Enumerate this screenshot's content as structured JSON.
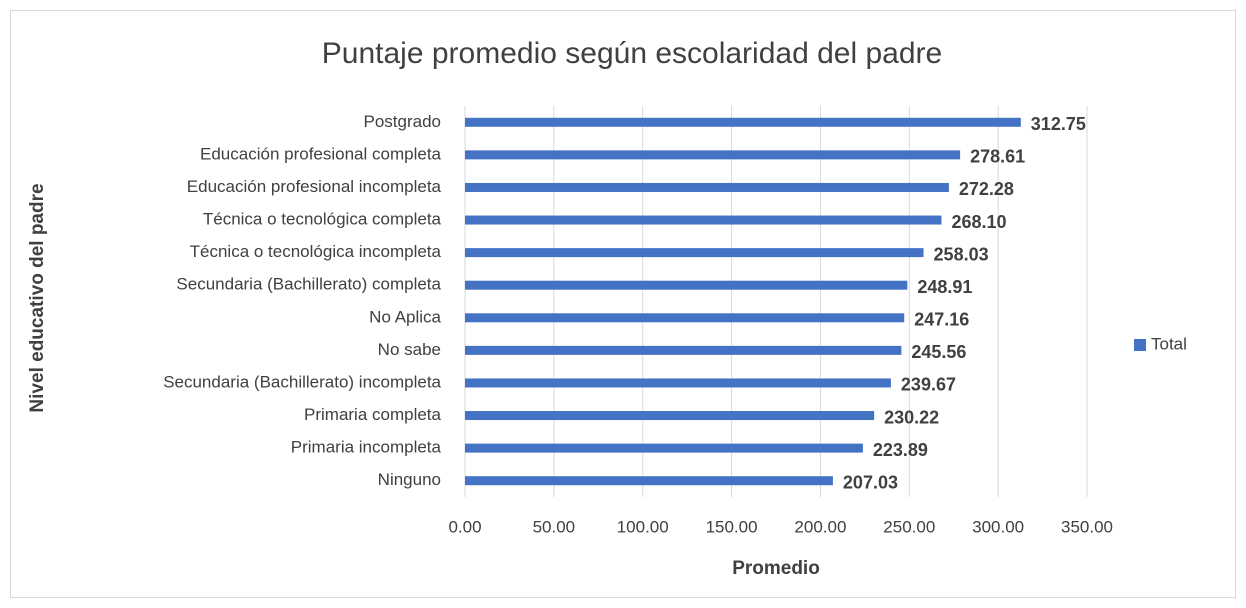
{
  "chart_data": {
    "type": "bar",
    "orientation": "horizontal",
    "title": "Puntaje promedio según escolaridad del padre",
    "x_label": "Promedio",
    "y_label": "Nivel educativo del padre",
    "categories": [
      "Postgrado",
      "Educación profesional completa",
      "Educación profesional incompleta",
      "Técnica o tecnológica completa",
      "Técnica o tecnológica incompleta",
      "Secundaria (Bachillerato) completa",
      "No Aplica",
      "No sabe",
      "Secundaria (Bachillerato) incompleta",
      "Primaria completa",
      "Primaria incompleta",
      "Ninguno"
    ],
    "series": [
      {
        "name": "Total",
        "color": "#4472c4",
        "values": [
          312.75,
          278.61,
          272.28,
          268.1,
          258.03,
          248.91,
          247.16,
          245.56,
          239.67,
          230.22,
          223.89,
          207.03
        ],
        "value_labels": [
          "312.75",
          "278.61",
          "272.28",
          "268.10",
          "258.03",
          "248.91",
          "247.16",
          "245.56",
          "239.67",
          "230.22",
          "223.89",
          "207.03"
        ]
      }
    ],
    "xlim": [
      0,
      350
    ],
    "xticks": [
      {
        "value": 0,
        "label": "0.00"
      },
      {
        "value": 50,
        "label": "50.00"
      },
      {
        "value": 100,
        "label": "100.00"
      },
      {
        "value": 150,
        "label": "150.00"
      },
      {
        "value": 200,
        "label": "200.00"
      },
      {
        "value": 250,
        "label": "250.00"
      },
      {
        "value": 300,
        "label": "300.00"
      },
      {
        "value": 350,
        "label": "350.00"
      }
    ],
    "grid": true,
    "legend": "right"
  }
}
